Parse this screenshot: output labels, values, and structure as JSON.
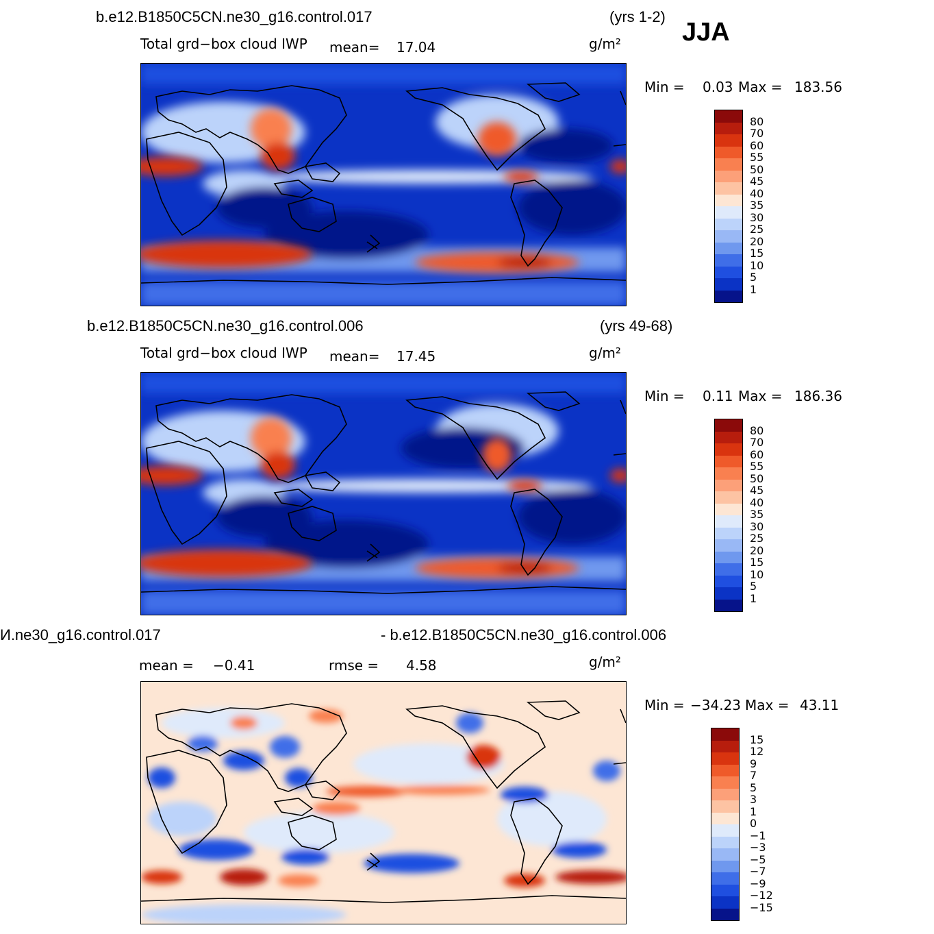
{
  "season": "JJA",
  "units": "g/m²",
  "panels": [
    {
      "id": "top",
      "case": "b.e12.B1850C5CN.ne30_g16.control.017",
      "years": "(yrs 1-2)",
      "variable": "Total grd−box cloud IWP",
      "mean_label": "mean=",
      "mean_value": "17.04",
      "min_label": "Min =",
      "min_value": "0.03",
      "max_label": "Max =",
      "max_value": "183.56"
    },
    {
      "id": "middle",
      "case": "b.e12.B1850C5CN.ne30_g16.control.006",
      "years": "(yrs 49-68)",
      "variable": "Total grd−box cloud IWP",
      "mean_label": "mean=",
      "mean_value": "17.45",
      "min_label": "Min =",
      "min_value": "0.11",
      "max_label": "Max =",
      "max_value": "186.36"
    },
    {
      "id": "difference",
      "case_left": "И.ne30_g16.control.017",
      "case_right": "- b.e12.B1850C5CN.ne30_g16.control.006",
      "mean_label": "mean =",
      "mean_value": "−0.41",
      "rmse_label": "rmse =",
      "rmse_value": "4.58",
      "min_label": "Min =",
      "min_value": "−34.23",
      "max_label": "Max =",
      "max_value": "43.11"
    }
  ],
  "colorbar_abs": {
    "levels": [
      "80",
      "70",
      "60",
      "55",
      "50",
      "45",
      "40",
      "35",
      "30",
      "25",
      "20",
      "15",
      "10",
      "5",
      "1"
    ],
    "colors": [
      "#8b0a0a",
      "#b71d0d",
      "#d9340f",
      "#ef5a2a",
      "#f98050",
      "#fca079",
      "#fdc3a3",
      "#fde6d4",
      "#dfeafb",
      "#bcd3fa",
      "#99b8f5",
      "#6f98ee",
      "#3f6ee8",
      "#1f4fe0",
      "#0b33c5",
      "#06138a"
    ]
  },
  "colorbar_diff": {
    "levels": [
      "15",
      "12",
      "9",
      "7",
      "5",
      "3",
      "1",
      "0",
      "−1",
      "−3",
      "−5",
      "−7",
      "−9",
      "−12",
      "−15"
    ],
    "colors": [
      "#8b0a0a",
      "#b71d0d",
      "#d9340f",
      "#ef5a2a",
      "#f98050",
      "#fca079",
      "#fdc3a3",
      "#fde6d4",
      "#dfeafb",
      "#bcd3fa",
      "#99b8f5",
      "#6f98ee",
      "#3f6ee8",
      "#1f4fe0",
      "#0b33c5",
      "#06138a"
    ]
  }
}
